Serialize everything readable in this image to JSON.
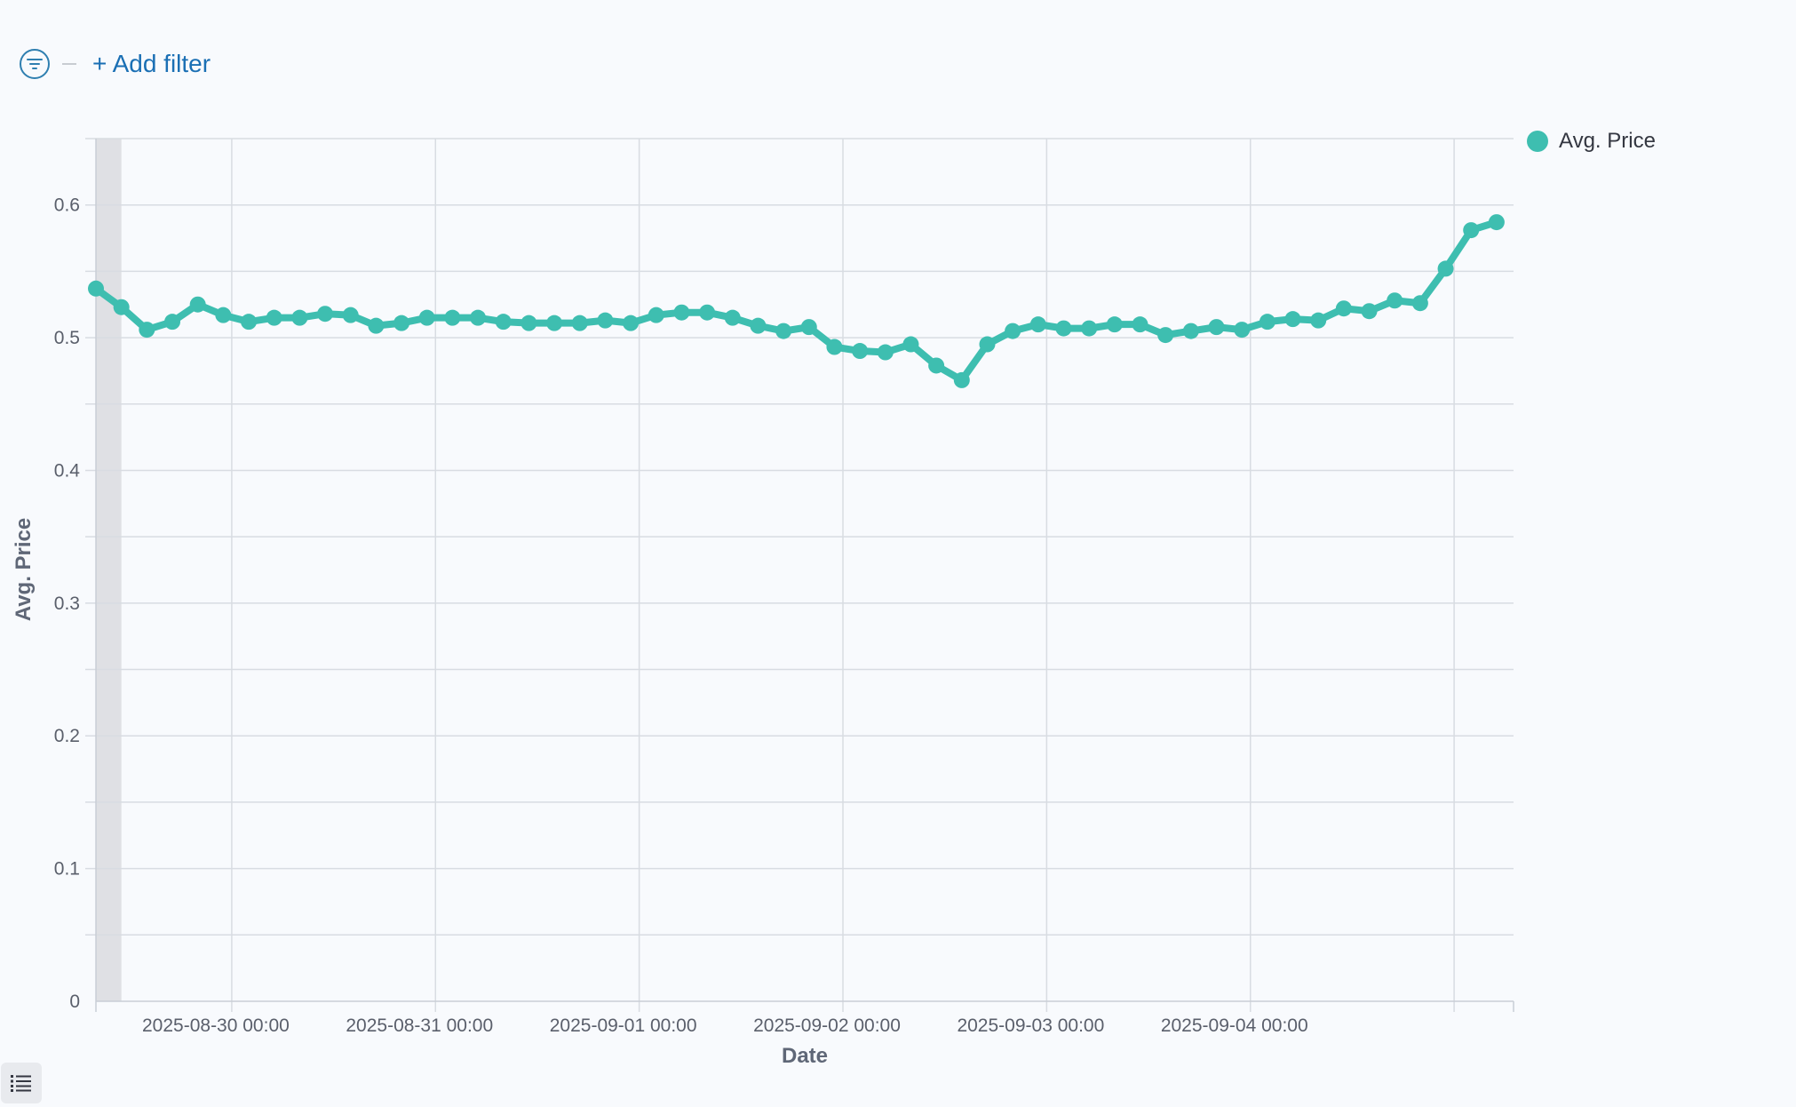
{
  "filter_bar": {
    "add_filter_label": "+ Add filter",
    "filter_icon": "filter-icon"
  },
  "legend": {
    "label": "Avg. Price",
    "color": "#3ebeb0"
  },
  "list_toggle": {
    "icon": "list-icon"
  },
  "chart_data": {
    "type": "line",
    "xlabel": "Date",
    "ylabel": "Avg. Price",
    "x_tick_labels": [
      "2025-08-30 00:00",
      "2025-08-31 00:00",
      "2025-09-01 00:00",
      "2025-09-02 00:00",
      "2025-09-03 00:00",
      "2025-09-04 00:00"
    ],
    "y_tick_labels": [
      "0",
      "0.1",
      "0.2",
      "0.3",
      "0.4",
      "0.5",
      "0.6"
    ],
    "xlim": [
      "2025-08-29 08:00",
      "2025-09-05 07:00"
    ],
    "ylim": [
      0,
      0.65
    ],
    "grid": true,
    "legend_position": "top-right",
    "series": [
      {
        "name": "Avg. Price",
        "color": "#3ebeb0",
        "x": [
          "2025-08-29 08:00",
          "2025-08-29 11:00",
          "2025-08-29 14:00",
          "2025-08-29 17:00",
          "2025-08-29 20:00",
          "2025-08-29 23:00",
          "2025-08-30 02:00",
          "2025-08-30 05:00",
          "2025-08-30 08:00",
          "2025-08-30 11:00",
          "2025-08-30 14:00",
          "2025-08-30 17:00",
          "2025-08-30 20:00",
          "2025-08-30 23:00",
          "2025-08-31 02:00",
          "2025-08-31 05:00",
          "2025-08-31 08:00",
          "2025-08-31 11:00",
          "2025-08-31 14:00",
          "2025-08-31 17:00",
          "2025-08-31 20:00",
          "2025-08-31 23:00",
          "2025-09-01 02:00",
          "2025-09-01 05:00",
          "2025-09-01 08:00",
          "2025-09-01 11:00",
          "2025-09-01 14:00",
          "2025-09-01 17:00",
          "2025-09-01 20:00",
          "2025-09-01 23:00",
          "2025-09-02 02:00",
          "2025-09-02 05:00",
          "2025-09-02 08:00",
          "2025-09-02 11:00",
          "2025-09-02 14:00",
          "2025-09-02 17:00",
          "2025-09-02 20:00",
          "2025-09-02 23:00",
          "2025-09-03 02:00",
          "2025-09-03 05:00",
          "2025-09-03 08:00",
          "2025-09-03 11:00",
          "2025-09-03 14:00",
          "2025-09-03 17:00",
          "2025-09-03 20:00",
          "2025-09-03 23:00",
          "2025-09-04 02:00",
          "2025-09-04 05:00",
          "2025-09-04 08:00",
          "2025-09-04 11:00",
          "2025-09-04 14:00",
          "2025-09-04 17:00",
          "2025-09-04 20:00",
          "2025-09-04 23:00",
          "2025-09-05 02:00",
          "2025-09-05 05:00"
        ],
        "values": [
          0.537,
          0.523,
          0.506,
          0.512,
          0.525,
          0.517,
          0.512,
          0.515,
          0.515,
          0.518,
          0.517,
          0.509,
          0.511,
          0.515,
          0.515,
          0.515,
          0.512,
          0.511,
          0.511,
          0.511,
          0.513,
          0.511,
          0.517,
          0.519,
          0.519,
          0.515,
          0.509,
          0.505,
          0.508,
          0.493,
          0.49,
          0.489,
          0.495,
          0.479,
          0.468,
          0.495,
          0.505,
          0.51,
          0.507,
          0.507,
          0.51,
          0.51,
          0.502,
          0.505,
          0.508,
          0.506,
          0.512,
          0.514,
          0.513,
          0.522,
          0.52,
          0.528,
          0.526,
          0.552,
          0.581,
          0.587
        ]
      }
    ]
  }
}
